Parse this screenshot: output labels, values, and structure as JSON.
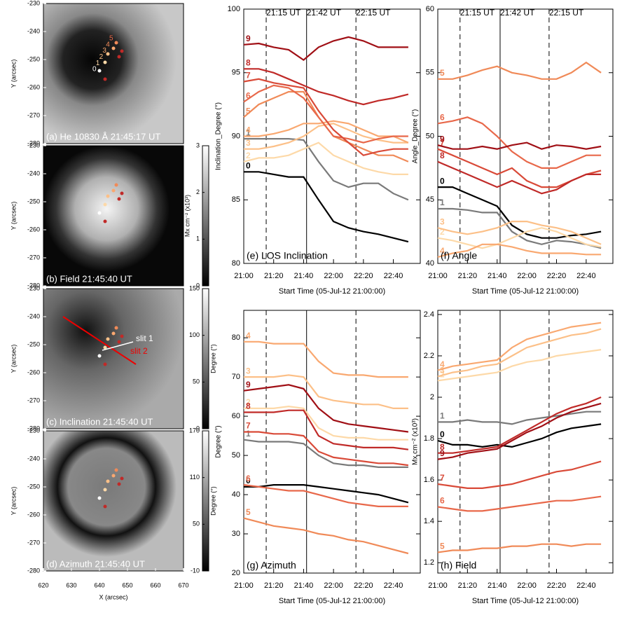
{
  "images": {
    "xticks": [
      620,
      630,
      640,
      650,
      660,
      670
    ],
    "xlim": [
      620,
      670
    ],
    "xlabel": "X (arcsec)",
    "ylabel": "Y (arcsec)",
    "ylim": [
      -230,
      -280
    ],
    "yticks": [
      -230,
      -240,
      -250,
      -260,
      -270,
      -280
    ],
    "panels": [
      {
        "label": "(a) He 10830 Å 21:45:17 UT",
        "markers": [
          "0",
          "1",
          "2",
          "3",
          "4",
          "5"
        ]
      },
      {
        "label": "(b) Field 21:45:40 UT",
        "colorbar": {
          "label": "Mx cm⁻² (x10³)",
          "lim": [
            0,
            3
          ],
          "ticks": [
            0,
            1,
            2,
            3
          ]
        }
      },
      {
        "label": "(c) Inclination 21:45:40 UT",
        "slits": [
          "slit 1",
          "slit 2"
        ],
        "colorbar": {
          "label": "Degree (°)",
          "lim": [
            0,
            150
          ],
          "ticks": [
            0,
            50,
            100,
            150
          ]
        }
      },
      {
        "label": "(d) Azimuth 21:45:40 UT",
        "colorbar": {
          "label": "Degree (°)",
          "lim": [
            -10,
            170
          ],
          "ticks": [
            -10,
            50,
            110,
            170
          ]
        }
      }
    ]
  },
  "chart_data": [
    {
      "type": "line",
      "title": "(e) LOS Inclination",
      "ylabel": "Inclination_Degree (°)",
      "xlabel": "Start Time (05-Jul-12 21:00:00)",
      "x": [
        "21:00",
        "21:10",
        "21:20",
        "21:30",
        "21:40",
        "21:50",
        "22:00",
        "22:10",
        "22:20",
        "22:30",
        "22:40",
        "22:50"
      ],
      "xlim": [
        "21:00",
        "22:58"
      ],
      "xticks": [
        "21:00",
        "21:20",
        "21:40",
        "22:00",
        "22:20",
        "22:40"
      ],
      "ylim": [
        80,
        100
      ],
      "yticks": [
        80,
        85,
        90,
        95,
        100
      ],
      "annotations": [
        {
          "label": "21:15 UT",
          "x": "21:15",
          "style": "dashed"
        },
        {
          "label": "21:42 UT",
          "x": "21:42",
          "style": "solid"
        },
        {
          "label": "22:15 UT",
          "x": "22:15",
          "style": "dashed"
        }
      ],
      "series": [
        {
          "name": "0",
          "color": "#000000",
          "values": [
            87.2,
            87.2,
            87.0,
            86.8,
            86.8,
            85.0,
            83.3,
            82.8,
            82.5,
            82.3,
            82.0,
            81.7
          ]
        },
        {
          "name": "1",
          "color": "#7a7a7a",
          "values": [
            89.8,
            89.8,
            89.8,
            89.8,
            89.7,
            88.0,
            86.5,
            86.0,
            86.3,
            86.3,
            85.5,
            85.0
          ]
        },
        {
          "name": "2",
          "color": "#fdd9a8",
          "values": [
            88.0,
            88.3,
            88.3,
            88.5,
            89.0,
            89.5,
            88.5,
            88.0,
            87.5,
            87.2,
            87.0,
            87.0
          ]
        },
        {
          "name": "3",
          "color": "#fcc088",
          "values": [
            89.0,
            89.0,
            89.2,
            89.5,
            90.0,
            90.8,
            91.0,
            90.5,
            90.0,
            89.7,
            89.5,
            89.5
          ]
        },
        {
          "name": "4",
          "color": "#f9a870",
          "values": [
            90.0,
            90.0,
            90.2,
            90.5,
            91.0,
            91.0,
            91.2,
            91.0,
            90.5,
            90.0,
            90.0,
            89.5
          ]
        },
        {
          "name": "5",
          "color": "#f08a58",
          "values": [
            91.5,
            92.5,
            93.0,
            93.5,
            93.5,
            91.5,
            90.0,
            89.5,
            89.0,
            88.5,
            88.5,
            88.0
          ]
        },
        {
          "name": "6",
          "color": "#e8684a",
          "values": [
            92.7,
            93.5,
            94.0,
            93.8,
            93.0,
            91.5,
            90.0,
            89.8,
            89.5,
            89.8,
            90.0,
            90.0
          ]
        },
        {
          "name": "7",
          "color": "#d94a38",
          "values": [
            94.3,
            94.5,
            94.2,
            94.0,
            93.8,
            92.0,
            90.5,
            89.5,
            88.5,
            88.8,
            89.0,
            89.0
          ]
        },
        {
          "name": "8",
          "color": "#c02a28",
          "values": [
            95.3,
            95.3,
            95.0,
            94.5,
            94.0,
            93.5,
            93.2,
            92.8,
            92.5,
            92.8,
            93.0,
            93.3
          ]
        },
        {
          "name": "9",
          "color": "#a00f15",
          "values": [
            97.2,
            97.3,
            97.0,
            96.8,
            96.0,
            97.0,
            97.5,
            97.8,
            97.5,
            97.0,
            97.0,
            97.0
          ]
        }
      ]
    },
    {
      "type": "line",
      "title": "(f) Angle",
      "ylabel": "Angle_Degree (°)",
      "xlabel": "Start Time (05-Jul-12 21:00:00)",
      "x": [
        "21:00",
        "21:10",
        "21:20",
        "21:30",
        "21:40",
        "21:50",
        "22:00",
        "22:10",
        "22:20",
        "22:30",
        "22:40",
        "22:50"
      ],
      "xlim": [
        "21:00",
        "22:58"
      ],
      "xticks": [
        "21:00",
        "21:20",
        "21:40",
        "22:00",
        "22:20",
        "22:40"
      ],
      "ylim": [
        40,
        60
      ],
      "yticks": [
        40,
        45,
        50,
        55,
        60
      ],
      "annotations": [
        {
          "label": "21:15 UT",
          "x": "21:15",
          "style": "dashed"
        },
        {
          "label": "21:42 UT",
          "x": "21:42",
          "style": "solid"
        },
        {
          "label": "22:15 UT",
          "x": "22:15",
          "style": "dashed"
        }
      ],
      "series": [
        {
          "name": "0",
          "color": "#000000",
          "values": [
            46.0,
            46.0,
            45.5,
            45.0,
            44.5,
            43.0,
            42.3,
            42.0,
            42.0,
            42.2,
            42.3,
            42.5
          ]
        },
        {
          "name": "1",
          "color": "#7a7a7a",
          "values": [
            44.3,
            44.3,
            44.2,
            44.0,
            44.0,
            42.5,
            41.8,
            41.5,
            41.8,
            41.7,
            41.5,
            41.2
          ]
        },
        {
          "name": "2",
          "color": "#fdd9a8",
          "values": [
            42.0,
            41.8,
            41.5,
            41.2,
            41.5,
            42.0,
            42.5,
            42.8,
            42.5,
            42.0,
            41.5,
            41.3
          ]
        },
        {
          "name": "3",
          "color": "#fcc088",
          "values": [
            42.8,
            42.5,
            42.3,
            42.5,
            42.8,
            43.3,
            43.3,
            43.0,
            42.8,
            42.5,
            42.0,
            41.5
          ]
        },
        {
          "name": "4",
          "color": "#f9a870",
          "values": [
            40.5,
            40.8,
            41.0,
            41.5,
            41.5,
            41.3,
            41.0,
            40.8,
            40.8,
            40.8,
            40.7,
            40.7
          ]
        },
        {
          "name": "5",
          "color": "#f08a58",
          "values": [
            54.5,
            54.5,
            54.8,
            55.2,
            55.5,
            55.0,
            54.8,
            54.5,
            54.5,
            55.0,
            55.8,
            55.0
          ]
        },
        {
          "name": "6",
          "color": "#e8684a",
          "values": [
            51.0,
            51.2,
            51.5,
            51.0,
            50.0,
            48.8,
            48.0,
            47.5,
            47.5,
            48.0,
            48.5,
            48.5
          ]
        },
        {
          "name": "7",
          "color": "#d94a38",
          "values": [
            49.0,
            48.5,
            48.0,
            47.5,
            47.0,
            47.5,
            46.5,
            46.0,
            46.0,
            46.5,
            47.0,
            47.3
          ]
        },
        {
          "name": "8",
          "color": "#c02a28",
          "values": [
            48.0,
            47.5,
            47.0,
            46.5,
            46.0,
            46.5,
            46.0,
            45.5,
            45.8,
            46.5,
            47.0,
            47.0
          ]
        },
        {
          "name": "9",
          "color": "#a00f15",
          "values": [
            49.3,
            49.0,
            49.0,
            49.2,
            49.0,
            49.3,
            49.5,
            49.0,
            49.3,
            49.2,
            49.0,
            49.2
          ]
        }
      ]
    },
    {
      "type": "line",
      "title": "(g) Azimuth",
      "ylabel": "Degree (°)",
      "xlabel": "Start Time (05-Jul-12 21:00:00)",
      "x": [
        "21:00",
        "21:10",
        "21:20",
        "21:30",
        "21:40",
        "21:50",
        "22:00",
        "22:10",
        "22:20",
        "22:30",
        "22:40",
        "22:50"
      ],
      "xlim": [
        "21:00",
        "22:58"
      ],
      "xticks": [
        "21:00",
        "21:20",
        "21:40",
        "22:00",
        "22:20",
        "22:40"
      ],
      "ylim": [
        20,
        87
      ],
      "yticks": [
        20,
        30,
        40,
        50,
        60,
        70,
        80
      ],
      "annotations": [
        {
          "x": "21:15",
          "style": "dashed"
        },
        {
          "x": "21:42",
          "style": "solid"
        },
        {
          "x": "22:15",
          "style": "dashed"
        }
      ],
      "series": [
        {
          "name": "0",
          "color": "#000000",
          "values": [
            42,
            42,
            42.5,
            42.5,
            42.5,
            42,
            41.5,
            41,
            40.5,
            40,
            39,
            38
          ]
        },
        {
          "name": "1",
          "color": "#7a7a7a",
          "values": [
            54,
            53.5,
            53.5,
            53.5,
            53,
            50,
            48,
            47.5,
            47.5,
            47,
            47,
            47
          ]
        },
        {
          "name": "2",
          "color": "#fdd9a8",
          "values": [
            62,
            62,
            62,
            62.5,
            62,
            57,
            55,
            54.5,
            54.5,
            54,
            54,
            54
          ]
        },
        {
          "name": "3",
          "color": "#fcc088",
          "values": [
            70,
            70,
            70,
            70.5,
            70,
            65,
            64,
            63.5,
            63,
            63,
            62,
            62
          ]
        },
        {
          "name": "4",
          "color": "#f9a870",
          "values": [
            79,
            79,
            78.5,
            78.5,
            78.5,
            74,
            71,
            70.5,
            70.5,
            70,
            70,
            70
          ]
        },
        {
          "name": "5",
          "color": "#f08a58",
          "values": [
            34,
            33,
            32,
            31.5,
            31,
            30,
            29.5,
            28.5,
            28,
            27,
            26,
            25
          ]
        },
        {
          "name": "6",
          "color": "#e8684a",
          "values": [
            42.5,
            42,
            41.5,
            41,
            41,
            40,
            39,
            38,
            37.5,
            37,
            37,
            37
          ]
        },
        {
          "name": "7",
          "color": "#d94a38",
          "values": [
            56,
            56,
            55.5,
            55.5,
            55,
            51,
            49.5,
            49,
            48.5,
            48,
            48,
            47.5
          ]
        },
        {
          "name": "8",
          "color": "#c02a28",
          "values": [
            61,
            61,
            61,
            61.5,
            61.5,
            55,
            53,
            52.5,
            52,
            52,
            52,
            51.5
          ]
        },
        {
          "name": "9",
          "color": "#a00f15",
          "values": [
            66.5,
            67,
            67.5,
            68,
            67,
            62,
            59,
            58,
            57.5,
            57,
            56.5,
            56
          ]
        }
      ]
    },
    {
      "type": "line",
      "title": "(h) Field",
      "ylabel": "Mx cm⁻² (x10³)",
      "xlabel": "Start Time (05-Jul-12 21:00:00)",
      "x": [
        "21:00",
        "21:10",
        "21:20",
        "21:30",
        "21:40",
        "21:50",
        "22:00",
        "22:10",
        "22:20",
        "22:30",
        "22:40",
        "22:50"
      ],
      "xlim": [
        "21:00",
        "22:58"
      ],
      "xticks": [
        "21:00",
        "21:20",
        "21:40",
        "22:00",
        "22:20",
        "22:40"
      ],
      "ylim": [
        1.15,
        2.42
      ],
      "yticks": [
        1.2,
        1.4,
        1.6,
        1.8,
        2.0,
        2.2,
        2.4
      ],
      "annotations": [
        {
          "x": "21:15",
          "style": "dashed"
        },
        {
          "x": "21:42",
          "style": "solid"
        },
        {
          "x": "22:15",
          "style": "dashed"
        }
      ],
      "series": [
        {
          "name": "0",
          "color": "#000000",
          "values": [
            1.79,
            1.77,
            1.77,
            1.76,
            1.77,
            1.76,
            1.78,
            1.8,
            1.83,
            1.85,
            1.86,
            1.87
          ]
        },
        {
          "name": "1",
          "color": "#7a7a7a",
          "values": [
            1.88,
            1.88,
            1.89,
            1.88,
            1.88,
            1.87,
            1.89,
            1.9,
            1.91,
            1.92,
            1.93,
            1.93
          ]
        },
        {
          "name": "2",
          "color": "#fdd9a8",
          "values": [
            2.08,
            2.09,
            2.1,
            2.11,
            2.12,
            2.15,
            2.17,
            2.18,
            2.2,
            2.21,
            2.22,
            2.23
          ]
        },
        {
          "name": "3",
          "color": "#fcc088",
          "values": [
            2.1,
            2.12,
            2.13,
            2.15,
            2.16,
            2.2,
            2.24,
            2.26,
            2.28,
            2.3,
            2.31,
            2.33
          ]
        },
        {
          "name": "4",
          "color": "#f9a870",
          "values": [
            2.13,
            2.15,
            2.16,
            2.17,
            2.18,
            2.24,
            2.28,
            2.3,
            2.32,
            2.34,
            2.35,
            2.36
          ]
        },
        {
          "name": "5",
          "color": "#f08a58",
          "values": [
            1.25,
            1.26,
            1.26,
            1.27,
            1.27,
            1.28,
            1.28,
            1.29,
            1.29,
            1.28,
            1.29,
            1.29
          ]
        },
        {
          "name": "6",
          "color": "#e8684a",
          "values": [
            1.47,
            1.46,
            1.45,
            1.45,
            1.46,
            1.47,
            1.48,
            1.49,
            1.5,
            1.5,
            1.51,
            1.52
          ]
        },
        {
          "name": "7",
          "color": "#d94a38",
          "values": [
            1.58,
            1.57,
            1.56,
            1.56,
            1.57,
            1.58,
            1.6,
            1.62,
            1.64,
            1.65,
            1.67,
            1.69
          ]
        },
        {
          "name": "8",
          "color": "#c02a28",
          "values": [
            1.73,
            1.73,
            1.74,
            1.75,
            1.76,
            1.8,
            1.84,
            1.88,
            1.92,
            1.95,
            1.97,
            2.0
          ]
        },
        {
          "name": "9",
          "color": "#a00f15",
          "values": [
            1.7,
            1.71,
            1.73,
            1.74,
            1.75,
            1.79,
            1.83,
            1.86,
            1.9,
            1.93,
            1.95,
            1.97
          ]
        }
      ]
    }
  ]
}
